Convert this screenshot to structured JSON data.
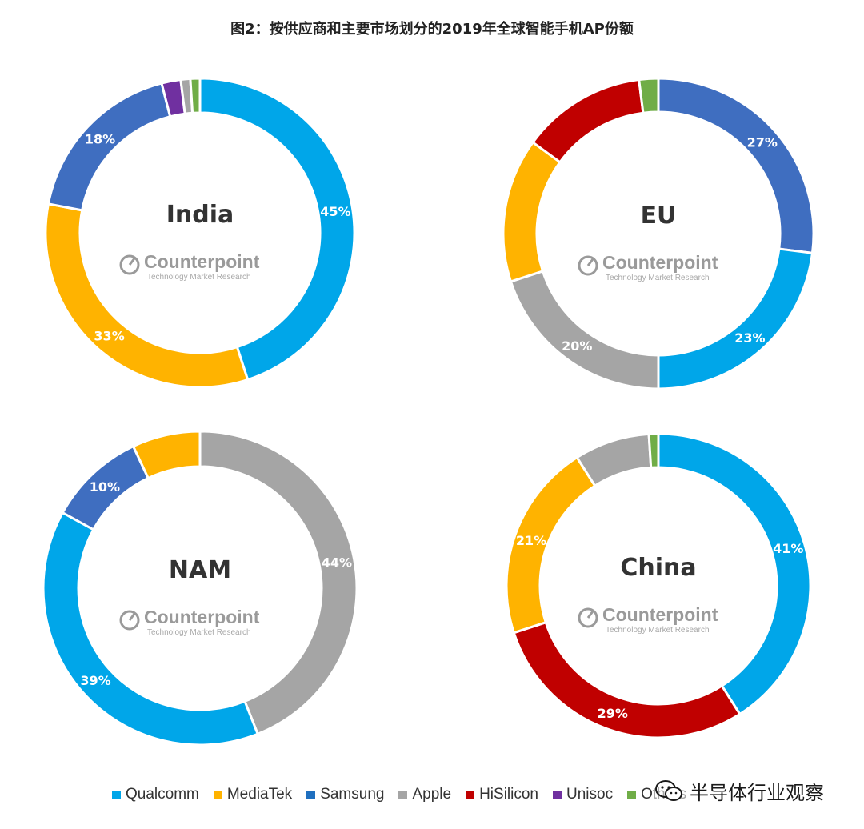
{
  "title": "图2：按供应商和主要市场划分的2019年全球智能手机AP份额",
  "colors": {
    "Qualcomm": "#00A6E9",
    "MediaTek": "#FFB300",
    "Samsung": "#3F6EC0",
    "Apple": "#A5A5A5",
    "HiSilicon": "#C00000",
    "Unisoc": "#7030A0",
    "Others": "#70AD47"
  },
  "legend": {
    "items": [
      {
        "label": "Qualcomm",
        "color": "#00A6E9"
      },
      {
        "label": "MediaTek",
        "color": "#FFB300"
      },
      {
        "label": "Samsung",
        "color": "#1F6FBF"
      },
      {
        "label": "Apple",
        "color": "#A5A5A5"
      },
      {
        "label": "HiSilicon",
        "color": "#C00000"
      },
      {
        "label": "Unisoc",
        "color": "#7030A0"
      },
      {
        "label": "Others",
        "color": "#70AD47"
      }
    ]
  },
  "watermark": {
    "brand": "Counterpoint",
    "tagline": "Technology Market Research"
  },
  "wechat_watermark": "半导体行业观察",
  "chart_data": [
    {
      "type": "pie",
      "title": "India",
      "slices": [
        {
          "label": "Qualcomm",
          "value": 45,
          "value_label": "45%"
        },
        {
          "label": "MediaTek",
          "value": 33,
          "value_label": "33%"
        },
        {
          "label": "Samsung",
          "value": 18,
          "value_label": "18%"
        },
        {
          "label": "Unisoc",
          "value": 2,
          "value_label": ""
        },
        {
          "label": "Apple",
          "value": 1,
          "value_label": ""
        },
        {
          "label": "Others",
          "value": 1,
          "value_label": ""
        }
      ]
    },
    {
      "type": "pie",
      "title": "EU",
      "slices": [
        {
          "label": "Samsung",
          "value": 27,
          "value_label": "27%"
        },
        {
          "label": "Qualcomm",
          "value": 23,
          "value_label": "23%"
        },
        {
          "label": "Apple",
          "value": 20,
          "value_label": "20%"
        },
        {
          "label": "MediaTek",
          "value": 15,
          "value_label": ""
        },
        {
          "label": "HiSilicon",
          "value": 13,
          "value_label": ""
        },
        {
          "label": "Others",
          "value": 2,
          "value_label": ""
        }
      ]
    },
    {
      "type": "pie",
      "title": "NAM",
      "slices": [
        {
          "label": "Apple",
          "value": 44,
          "value_label": "44%"
        },
        {
          "label": "Qualcomm",
          "value": 39,
          "value_label": "39%"
        },
        {
          "label": "Samsung",
          "value": 10,
          "value_label": "10%"
        },
        {
          "label": "MediaTek",
          "value": 7,
          "value_label": ""
        }
      ]
    },
    {
      "type": "pie",
      "title": "China",
      "slices": [
        {
          "label": "Qualcomm",
          "value": 41,
          "value_label": "41%"
        },
        {
          "label": "HiSilicon",
          "value": 29,
          "value_label": "29%"
        },
        {
          "label": "MediaTek",
          "value": 21,
          "value_label": "21%"
        },
        {
          "label": "Apple",
          "value": 8,
          "value_label": ""
        },
        {
          "label": "Others",
          "value": 1,
          "value_label": ""
        }
      ]
    }
  ]
}
